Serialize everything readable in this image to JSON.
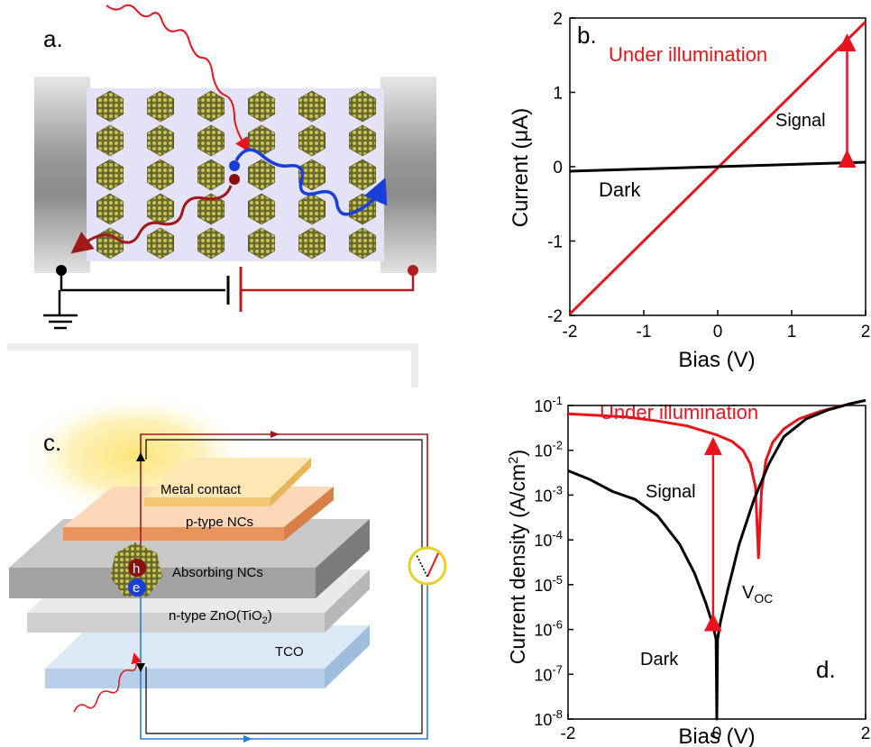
{
  "panels": {
    "a": {
      "label": "a."
    },
    "b": {
      "label": "b."
    },
    "c": {
      "label": "c.",
      "layers": [
        "Metal contact",
        "p-type NCs",
        "Absorbing NCs",
        "n-type ZnO(TiO",
        "TCO"
      ],
      "subscript": "2",
      "close_paren": ")",
      "carrier_h": "h",
      "carrier_e": "e"
    },
    "d": {
      "label": "d.",
      "voc_main": "V",
      "voc_sub": "OC"
    }
  },
  "chart_data": [
    {
      "type": "line",
      "panel": "b",
      "xlabel": "Bias (V)",
      "ylabel": "Current (μA)",
      "xlim": [
        -2,
        2
      ],
      "ylim": [
        -2,
        2
      ],
      "x_ticks": [
        "-2",
        "-1",
        "0",
        "1",
        "2"
      ],
      "y_ticks": [
        "2",
        "1",
        "0",
        "-1",
        "-2"
      ],
      "series": [
        {
          "name": "Under illumination",
          "color": "#e8141b",
          "x": [
            -2,
            2
          ],
          "y": [
            -1.98,
            1.95
          ]
        },
        {
          "name": "Dark",
          "color": "#000000",
          "x": [
            -2,
            2
          ],
          "y": [
            -0.06,
            0.06
          ]
        }
      ],
      "annotations": [
        {
          "text": "Signal",
          "x": 1.75,
          "y_from": 0.06,
          "y_to": 1.72,
          "color": "#e8141b"
        }
      ]
    },
    {
      "type": "line",
      "panel": "d",
      "yscale": "log",
      "xlabel": "Bias (V)",
      "ylabel_main": "Current density (A/cm",
      "ylabel_sup": "2",
      "ylabel_end": ")",
      "xlim": [
        -2,
        2
      ],
      "ylim": [
        1e-08,
        0.1
      ],
      "x_ticks": [
        "-2",
        "0",
        "2"
      ],
      "y_ticks_exp": [
        "-1",
        "-2",
        "-3",
        "-4",
        "-5",
        "-6",
        "-7",
        "-8"
      ],
      "y_tick_base": "10",
      "series": [
        {
          "name": "Under illumination",
          "color": "#e8141b",
          "x": [
            -2.0,
            -1.6,
            -1.2,
            -0.8,
            -0.4,
            0.0,
            0.2,
            0.35,
            0.45,
            0.52,
            0.56,
            0.6,
            0.66,
            0.75,
            0.9,
            1.1,
            1.4,
            1.7,
            2.0
          ],
          "y": [
            0.065,
            0.06,
            0.055,
            0.045,
            0.035,
            0.022,
            0.016,
            0.01,
            0.005,
            0.0015,
            4e-05,
            0.0012,
            0.006,
            0.015,
            0.03,
            0.05,
            0.075,
            0.1,
            0.13
          ]
        },
        {
          "name": "Dark",
          "color": "#000000",
          "x": [
            -2.0,
            -1.7,
            -1.4,
            -1.1,
            -0.8,
            -0.5,
            -0.3,
            -0.15,
            -0.05,
            -0.01,
            0.0,
            0.01,
            0.05,
            0.15,
            0.3,
            0.5,
            0.7,
            0.9,
            1.2,
            1.5,
            1.8,
            2.0
          ],
          "y": [
            0.0035,
            0.0022,
            0.0012,
            0.0008,
            0.00035,
            8e-05,
            1.8e-05,
            4e-06,
            1.2e-06,
            6e-07,
            1e-08,
            6e-07,
            1.5e-06,
            8e-06,
            8e-05,
            0.0008,
            0.005,
            0.02,
            0.05,
            0.08,
            0.11,
            0.13
          ]
        }
      ],
      "annotations": [
        {
          "text": "Signal",
          "x": -0.05,
          "y_from": 1.2e-06,
          "y_to": 0.015,
          "color": "#e8141b"
        }
      ]
    }
  ]
}
